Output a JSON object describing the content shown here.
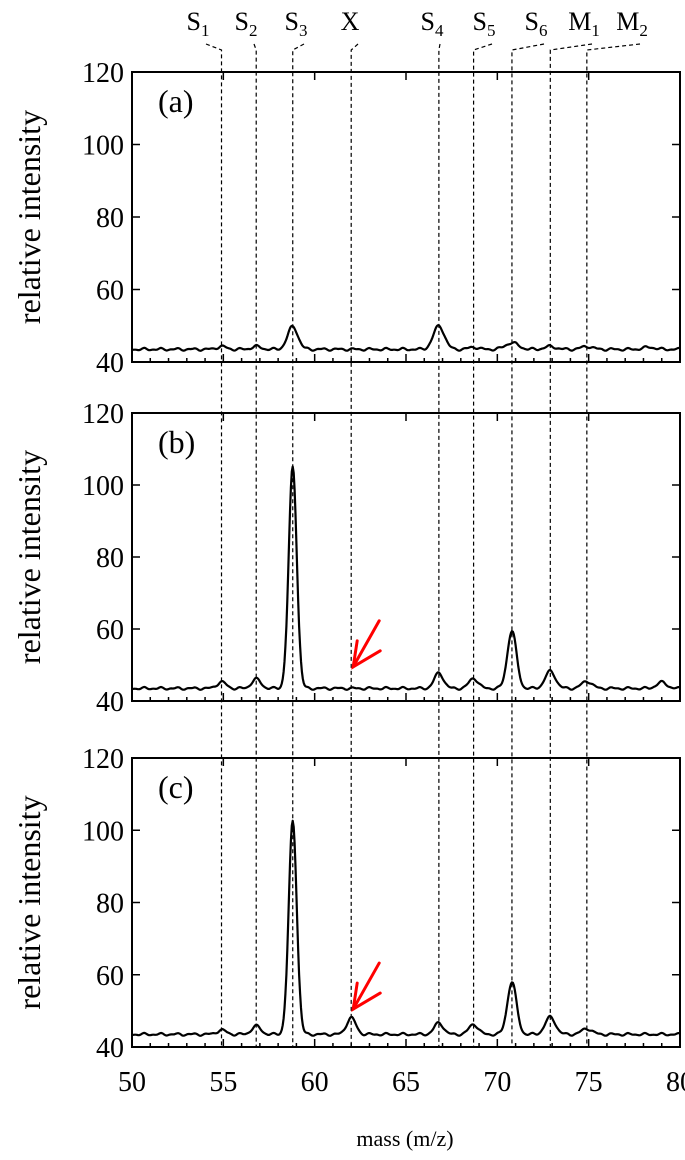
{
  "chart_data": {
    "type": "line",
    "xlabel": "mass (m/z)",
    "xlim": [
      50,
      80
    ],
    "xticks": [
      50,
      55,
      60,
      65,
      70,
      75,
      80
    ],
    "peak_markers": [
      {
        "label": "S",
        "sub": "1",
        "x": 54.9
      },
      {
        "label": "S",
        "sub": "2",
        "x": 56.8
      },
      {
        "label": "S",
        "sub": "3",
        "x": 58.8
      },
      {
        "label": "X",
        "sub": "",
        "x": 62.0
      },
      {
        "label": "S",
        "sub": "4",
        "x": 66.8
      },
      {
        "label": "S",
        "sub": "5",
        "x": 68.7
      },
      {
        "label": "S",
        "sub": "6",
        "x": 70.8
      },
      {
        "label": "M",
        "sub": "1",
        "x": 72.9
      },
      {
        "label": "M",
        "sub": "2",
        "x": 74.9
      }
    ],
    "panels": [
      {
        "label": "(a)",
        "ylabel": "relative intensity",
        "ylim": [
          40,
          120
        ],
        "yticks": [
          40,
          60,
          80,
          100,
          120
        ],
        "baseline": 43.5,
        "peaks": [
          {
            "x": 54.9,
            "height": 0.8,
            "width": 0.25
          },
          {
            "x": 56.8,
            "height": 0.8,
            "width": 0.25
          },
          {
            "x": 58.8,
            "height": 6.3,
            "width": 0.28
          },
          {
            "x": 66.8,
            "height": 6.5,
            "width": 0.3
          },
          {
            "x": 68.7,
            "height": 0.6,
            "width": 0.25
          },
          {
            "x": 70.8,
            "height": 1.8,
            "width": 0.35
          },
          {
            "x": 72.9,
            "height": 0.8,
            "width": 0.3
          },
          {
            "x": 74.9,
            "height": 0.8,
            "width": 0.3
          },
          {
            "x": 78.3,
            "height": 0.6,
            "width": 0.3
          }
        ],
        "arrow_at": null
      },
      {
        "label": "(b)",
        "ylabel": "relative intensity",
        "ylim": [
          40,
          120
        ],
        "yticks": [
          40,
          60,
          80,
          100,
          120
        ],
        "baseline": 43.5,
        "peaks": [
          {
            "x": 54.9,
            "height": 1.8,
            "width": 0.25
          },
          {
            "x": 56.8,
            "height": 2.6,
            "width": 0.25
          },
          {
            "x": 58.8,
            "height": 61.5,
            "width": 0.22
          },
          {
            "x": 66.8,
            "height": 4.3,
            "width": 0.25
          },
          {
            "x": 68.7,
            "height": 2.8,
            "width": 0.25
          },
          {
            "x": 70.8,
            "height": 16.0,
            "width": 0.25
          },
          {
            "x": 72.9,
            "height": 4.8,
            "width": 0.28
          },
          {
            "x": 74.9,
            "height": 2.0,
            "width": 0.28
          },
          {
            "x": 79.0,
            "height": 1.7,
            "width": 0.28
          }
        ],
        "arrow_at": {
          "x": 62.0,
          "y": 49.5
        }
      },
      {
        "label": "(c)",
        "ylabel": "relative intensity",
        "ylim": [
          40,
          120
        ],
        "yticks": [
          40,
          60,
          80,
          100,
          120
        ],
        "baseline": 43.5,
        "peaks": [
          {
            "x": 54.9,
            "height": 1.2,
            "width": 0.25
          },
          {
            "x": 56.8,
            "height": 2.3,
            "width": 0.25
          },
          {
            "x": 58.8,
            "height": 59.0,
            "width": 0.22
          },
          {
            "x": 62.0,
            "height": 4.6,
            "width": 0.25
          },
          {
            "x": 66.8,
            "height": 3.2,
            "width": 0.25
          },
          {
            "x": 68.7,
            "height": 2.8,
            "width": 0.25
          },
          {
            "x": 70.8,
            "height": 14.5,
            "width": 0.25
          },
          {
            "x": 72.9,
            "height": 4.8,
            "width": 0.28
          },
          {
            "x": 74.9,
            "height": 1.6,
            "width": 0.28
          }
        ],
        "arrow_at": {
          "x": 62.0,
          "y": 50.5
        }
      }
    ]
  }
}
